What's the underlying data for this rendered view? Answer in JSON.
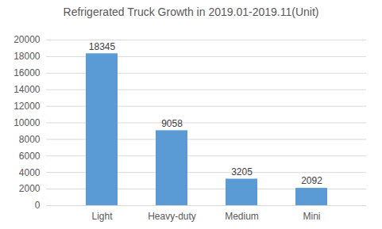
{
  "chart_data": {
    "type": "bar",
    "title": "Refrigerated Truck Growth in 2019.01-2019.11(Unit)",
    "categories": [
      "Light",
      "Heavy-duty",
      "Medium",
      "Mini"
    ],
    "values": [
      18345,
      9058,
      3205,
      2092
    ],
    "color": "#5b9bd5",
    "ylim": [
      0,
      20000
    ],
    "yticks": [
      0,
      2000,
      4000,
      6000,
      8000,
      10000,
      12000,
      14000,
      16000,
      18000,
      20000
    ],
    "grid": true,
    "data_labels": true
  }
}
